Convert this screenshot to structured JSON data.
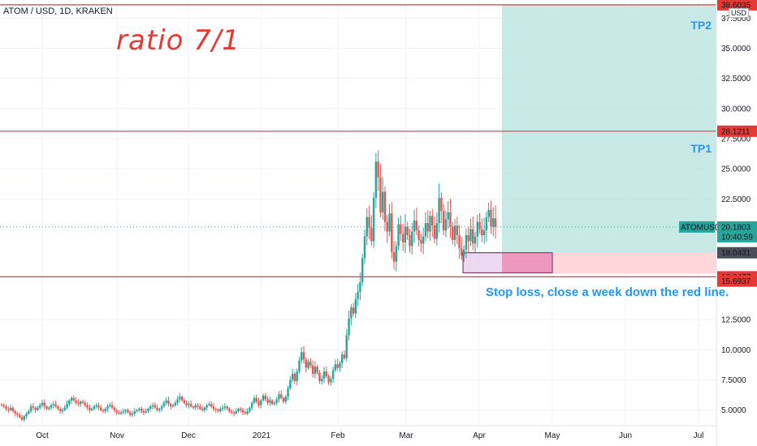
{
  "header": {
    "symbol": "ATOM / USD, 1D, KRAKEN",
    "currency_badge": "USD"
  },
  "annotations": {
    "ratio": "ratio 7/1",
    "tp2": "TP2",
    "tp1": "TP1",
    "stop_note": "Stop loss, close a week down the red line."
  },
  "colors": {
    "up": "#26a69a",
    "down": "#ef5350",
    "line_red": "#e53935",
    "profit_zone": "#b2dfdb",
    "loss_zone": "#ffcdd2",
    "label_blue": "#2196f3"
  },
  "chart_data": {
    "type": "candlestick",
    "x_ticks": [
      "Oct",
      "Nov",
      "Dec",
      "2021",
      "Feb",
      "Mar",
      "Apr",
      "May",
      "Jun",
      "Jul"
    ],
    "y_ticks": [
      "37.5000",
      "35.0000",
      "32.5000",
      "30.0000",
      "27.5000",
      "25.0000",
      "22.5000",
      "12.5000",
      "10.0000",
      "7.5000",
      "5.0000"
    ],
    "ylim": [
      3.7,
      39.0
    ],
    "price_labels": [
      {
        "value": 38.6035,
        "text": "38.6035",
        "kind": "red"
      },
      {
        "value": 28.1211,
        "text": "28.1211",
        "kind": "red"
      },
      {
        "value": 18.0431,
        "text": "18.0431",
        "kind": "dark"
      },
      {
        "value": 16.0477,
        "text": "16.0477",
        "kind": "red"
      },
      {
        "value": 15.6937,
        "text": "15.6937",
        "kind": "red"
      }
    ],
    "current": {
      "symbol": "ATOMUSD",
      "price": "20.1803",
      "countdown": "10:40:59",
      "value": 20.1803
    },
    "horizontal_lines": [
      38.6035,
      28.1211,
      16.0477
    ],
    "position": {
      "entry": 18.0431,
      "target": 38.6035,
      "stop": 16.0477
    },
    "series": [
      {
        "name": "ATOM / USD",
        "close": [
          5.4,
          5.3,
          5.1,
          5.0,
          5.2,
          4.9,
          4.7,
          4.6,
          4.4,
          4.2,
          4.5,
          4.7,
          4.9,
          5.3,
          5.2,
          5.0,
          5.2,
          5.4,
          5.6,
          5.3,
          5.1,
          5.2,
          5.4,
          5.5,
          5.3,
          5.1,
          4.9,
          5.0,
          5.2,
          5.5,
          5.8,
          6.0,
          5.8,
          5.6,
          5.5,
          5.7,
          5.6,
          5.4,
          5.2,
          5.0,
          5.1,
          5.3,
          5.4,
          5.2,
          5.0,
          4.9,
          5.1,
          5.3,
          5.4,
          5.2,
          5.0,
          4.8,
          4.7,
          4.8,
          4.9,
          5.0,
          4.8,
          4.6,
          4.7,
          4.9,
          5.0,
          5.1,
          4.9,
          4.8,
          4.9,
          5.1,
          5.3,
          5.4,
          5.2,
          5.0,
          5.1,
          5.3,
          5.6,
          5.8,
          5.5,
          5.3,
          5.4,
          5.6,
          5.9,
          6.1,
          5.8,
          5.6,
          5.4,
          5.5,
          5.3,
          5.2,
          5.4,
          5.3,
          5.1,
          5.0,
          5.2,
          5.4,
          5.5,
          5.3,
          5.1,
          5.0,
          4.9,
          5.1,
          5.2,
          5.3,
          5.1,
          4.9,
          4.8,
          4.7,
          4.9,
          5.1,
          5.0,
          4.8,
          4.7,
          4.9,
          5.2,
          5.6,
          6.0,
          5.7,
          5.4,
          5.8,
          6.2,
          5.9,
          5.6,
          5.8,
          5.5,
          5.6,
          5.9,
          6.3,
          6.0,
          5.7,
          6.1,
          6.8,
          7.5,
          8.0,
          7.4,
          8.2,
          9.1,
          9.8,
          9.2,
          8.5,
          9.0,
          8.7,
          8.0,
          8.6,
          8.1,
          7.4,
          7.6,
          8.2,
          7.8,
          7.3,
          7.6,
          8.3,
          8.8,
          8.5,
          8.9,
          9.6,
          9.3,
          11.2,
          12.6,
          13.5,
          13.0,
          14.2,
          14.8,
          15.6,
          17.6,
          19.4,
          21.0,
          20.1,
          19.0,
          22.6,
          25.6,
          24.3,
          21.4,
          23.1,
          20.6,
          19.8,
          21.3,
          18.1,
          17.3,
          18.6,
          20.4,
          19.6,
          18.9,
          20.2,
          19.5,
          18.6,
          19.8,
          20.7,
          19.9,
          19.1,
          18.8,
          19.4,
          20.5,
          19.8,
          21.1,
          20.3,
          19.2,
          20.5,
          22.6,
          21.5,
          19.9,
          20.8,
          21.4,
          20.2,
          19.1,
          20.3,
          19.5,
          18.4,
          17.8,
          18.3,
          19.5,
          19.0,
          20.0,
          18.8,
          19.4,
          20.6,
          20.0,
          19.5,
          19.9,
          21.0,
          21.6,
          20.2,
          20.9,
          20.18
        ]
      }
    ]
  }
}
